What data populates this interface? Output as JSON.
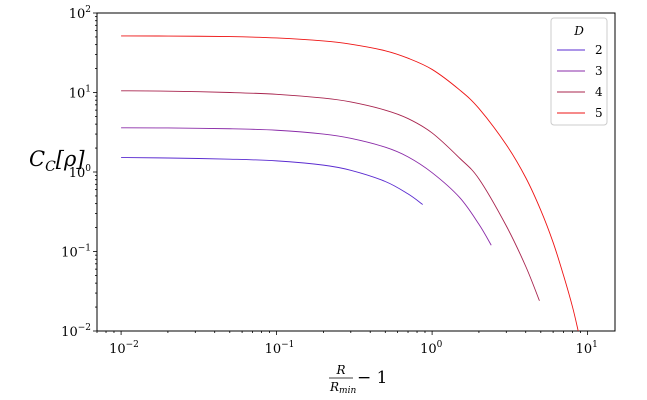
{
  "chart_data": {
    "type": "line",
    "xscale": "log",
    "yscale": "log",
    "xlim": [
      0.007,
      15
    ],
    "ylim": [
      0.01,
      100
    ],
    "xticks": [
      {
        "value": 0.01,
        "base": "10",
        "exp": "−2"
      },
      {
        "value": 0.1,
        "base": "10",
        "exp": "−1"
      },
      {
        "value": 1,
        "base": "10",
        "exp": "0"
      },
      {
        "value": 10,
        "base": "10",
        "exp": "1"
      }
    ],
    "yticks": [
      {
        "value": 0.01,
        "base": "10",
        "exp": "−2"
      },
      {
        "value": 0.1,
        "base": "10",
        "exp": "−1"
      },
      {
        "value": 1,
        "base": "10",
        "exp": "0"
      },
      {
        "value": 10,
        "base": "10",
        "exp": "1"
      },
      {
        "value": 100,
        "base": "10",
        "exp": "2"
      }
    ],
    "xlabel": {
      "num": "R",
      "den": "R",
      "den_sub": "min",
      "suffix": "− 1"
    },
    "ylabel": {
      "main": "C",
      "sub": "C",
      "arg": "[ρ]"
    },
    "legend": {
      "title": "D",
      "position": "top-right"
    },
    "series": [
      {
        "name": "2",
        "color": "#5a2bd0",
        "x": [
          0.01,
          0.02,
          0.05,
          0.1,
          0.2,
          0.3,
          0.5,
          0.7,
          0.87
        ],
        "y": [
          1.52,
          1.5,
          1.45,
          1.38,
          1.22,
          1.05,
          0.76,
          0.53,
          0.39
        ]
      },
      {
        "name": "3",
        "color": "#8a2ba8",
        "x": [
          0.01,
          0.02,
          0.05,
          0.1,
          0.2,
          0.3,
          0.5,
          0.7,
          1.0,
          1.5,
          2.0,
          2.4
        ],
        "y": [
          3.6,
          3.58,
          3.5,
          3.35,
          3.0,
          2.65,
          2.05,
          1.55,
          0.98,
          0.48,
          0.22,
          0.12
        ]
      },
      {
        "name": "4",
        "color": "#a8244e",
        "x": [
          0.01,
          0.02,
          0.05,
          0.1,
          0.2,
          0.3,
          0.5,
          0.7,
          1.0,
          1.5,
          2.0,
          3.0,
          4.0,
          4.9
        ],
        "y": [
          10.5,
          10.4,
          10.0,
          9.5,
          8.5,
          7.6,
          6.0,
          4.7,
          3.1,
          1.5,
          0.82,
          0.21,
          0.065,
          0.024
        ]
      },
      {
        "name": "5",
        "color": "#ee1414",
        "x": [
          0.01,
          0.02,
          0.05,
          0.1,
          0.2,
          0.3,
          0.5,
          0.7,
          1.0,
          1.5,
          2.0,
          3.0,
          4.0,
          5.0,
          6.0,
          7.0,
          8.0,
          8.7
        ],
        "y": [
          51.5,
          51.3,
          50.5,
          48.5,
          44.5,
          40.5,
          33.5,
          27.0,
          19.5,
          10.8,
          6.3,
          2.2,
          0.85,
          0.33,
          0.13,
          0.05,
          0.02,
          0.01
        ]
      }
    ]
  }
}
